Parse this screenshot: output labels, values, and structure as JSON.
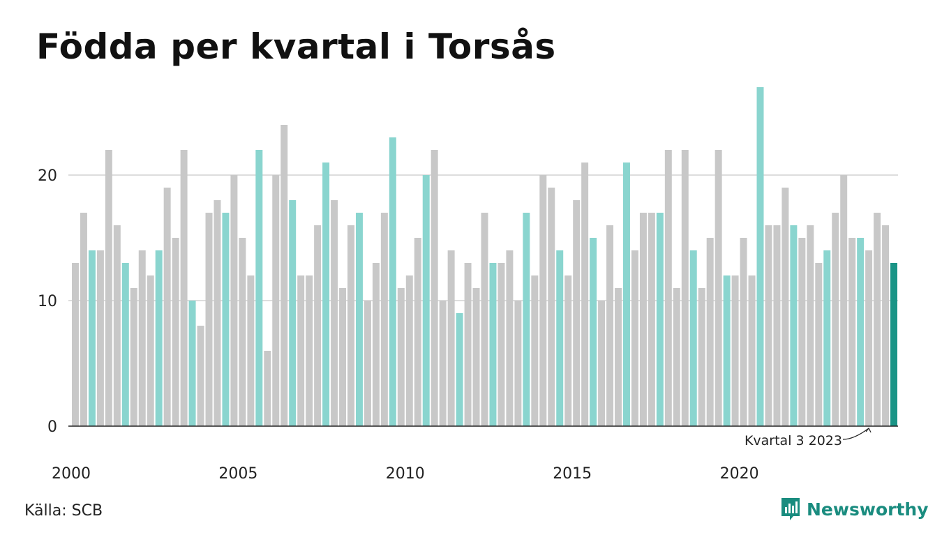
{
  "title": "Födda per kvartal i Torsås",
  "source": "Källa: SCB",
  "brand": "Newsworthy",
  "annotation": "Kvartal 3 2023",
  "colors": {
    "bar_default": "#c8c8c8",
    "bar_q3": "#8ad5cf",
    "bar_latest": "#1a9486",
    "gridline": "#dddddd",
    "axis": "#222222",
    "brand": "#1a8c7f"
  },
  "chart_data": {
    "type": "bar",
    "x_ticks": [
      "2000",
      "2005",
      "2010",
      "2015",
      "2020"
    ],
    "y_ticks": [
      0,
      10,
      20
    ],
    "ylim": [
      0,
      27
    ],
    "start_year": 2000,
    "values": [
      13,
      17,
      14,
      14,
      22,
      16,
      13,
      11,
      14,
      12,
      14,
      19,
      15,
      22,
      10,
      8,
      17,
      18,
      17,
      20,
      15,
      12,
      22,
      6,
      20,
      24,
      18,
      12,
      12,
      16,
      21,
      18,
      11,
      16,
      17,
      10,
      13,
      17,
      23,
      11,
      12,
      15,
      20,
      22,
      10,
      14,
      9,
      13,
      11,
      17,
      13,
      13,
      14,
      10,
      17,
      12,
      20,
      19,
      14,
      12,
      18,
      21,
      15,
      10,
      16,
      11,
      21,
      14,
      17,
      17,
      17,
      22,
      11,
      22,
      14,
      11,
      15,
      22,
      12,
      12,
      15,
      12,
      27,
      16,
      16,
      19,
      16,
      15,
      16,
      13,
      14,
      17,
      20,
      15,
      15,
      14,
      17,
      16,
      13
    ]
  }
}
